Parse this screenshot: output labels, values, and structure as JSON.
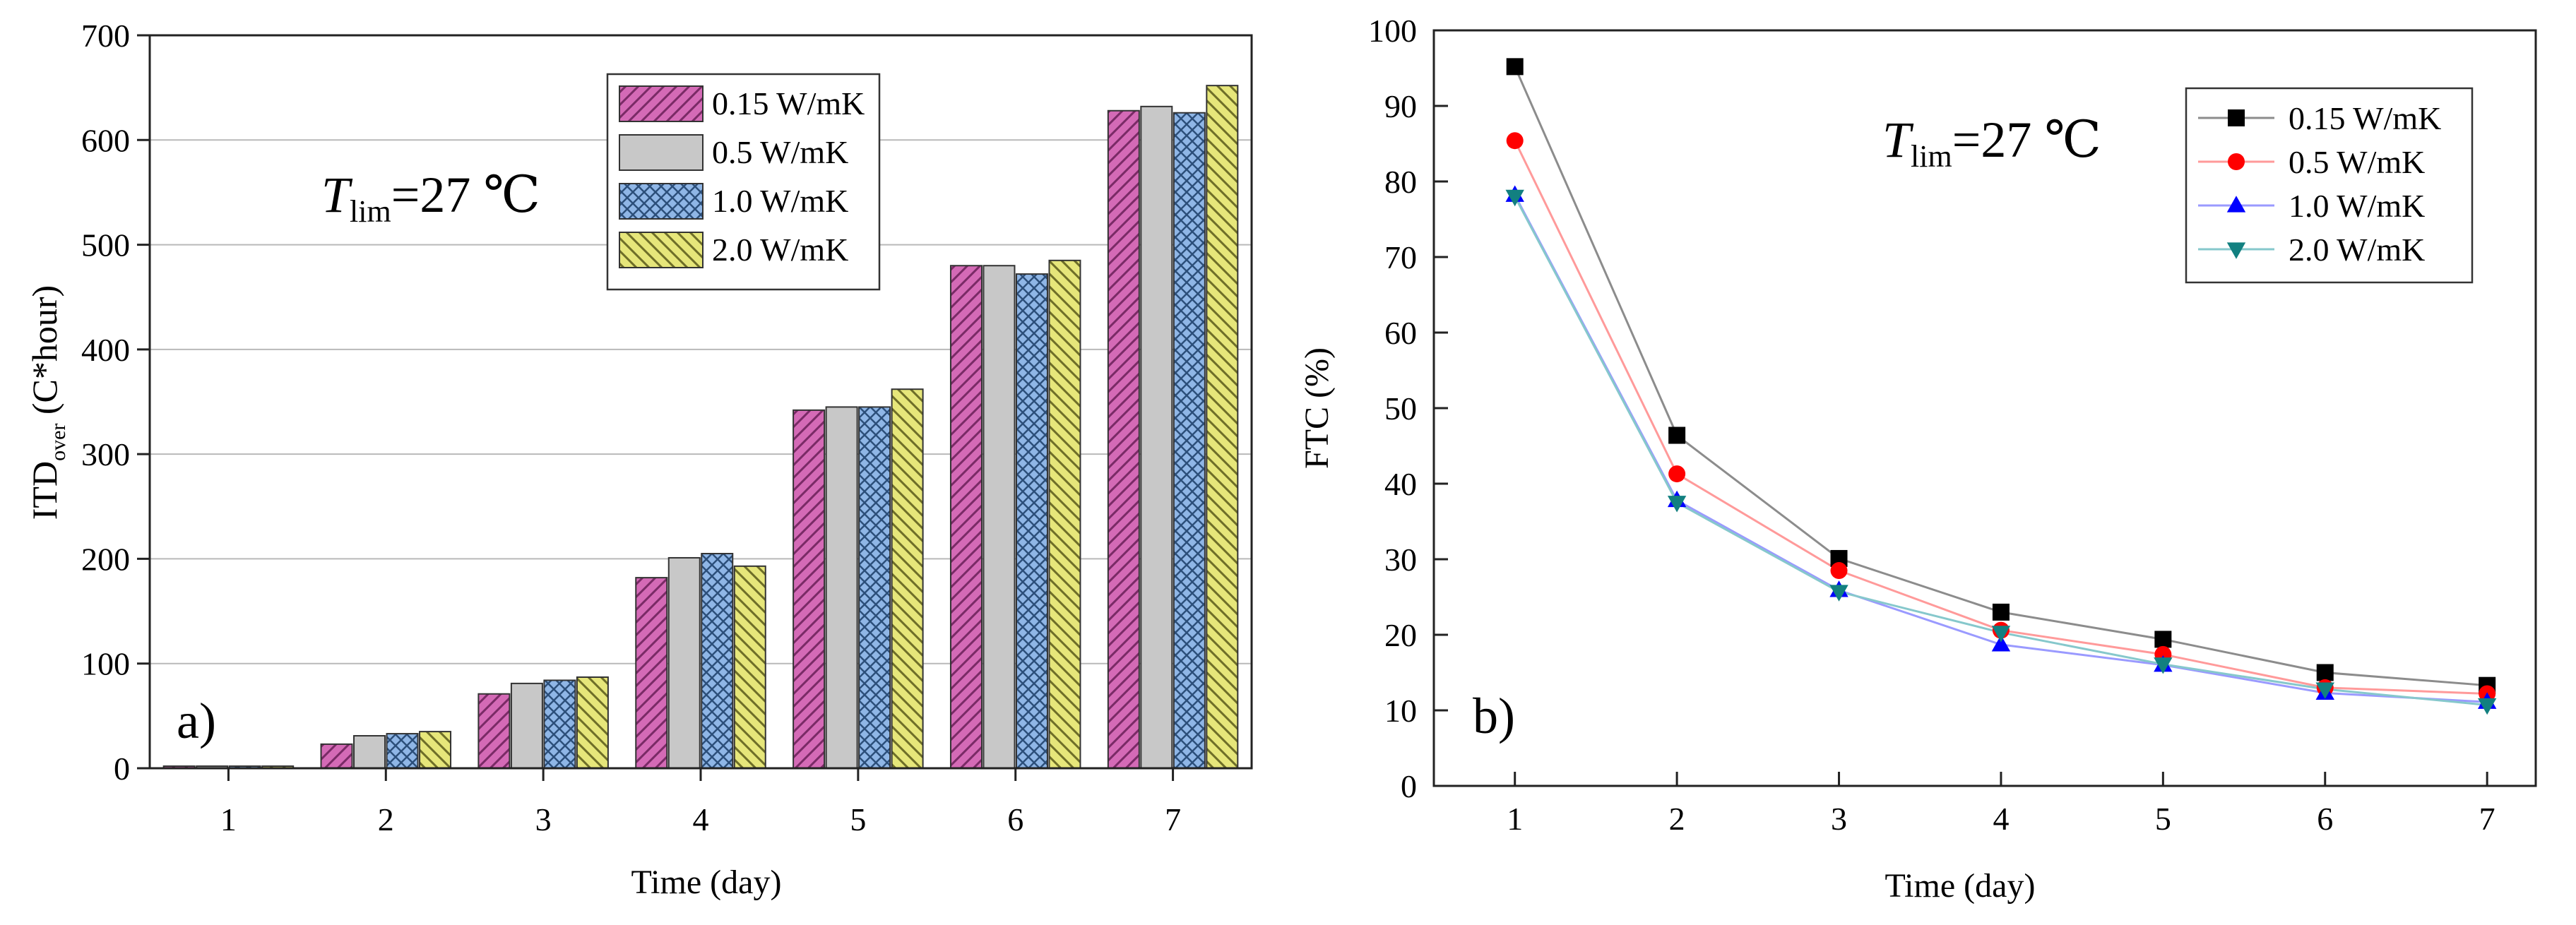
{
  "chart_data": [
    {
      "type": "bar",
      "panel_label": "a)",
      "annotation": {
        "main": "T",
        "sub": "lim",
        "rest": "=27 ℃"
      },
      "xlabel": "Time (day)",
      "ylabel": {
        "main": "ITD",
        "sub": "over",
        "rest": " (C*hour)"
      },
      "categories": [
        "1",
        "2",
        "3",
        "4",
        "5",
        "6",
        "7"
      ],
      "ylim": [
        0,
        700
      ],
      "yticks": [
        "0",
        "100",
        "200",
        "300",
        "400",
        "500",
        "600",
        "700"
      ],
      "legend_position": "top-right",
      "grid": "horizontal",
      "series": [
        {
          "name": "0.15 W/mK",
          "values": [
            2,
            23,
            71,
            182,
            342,
            480,
            628
          ],
          "color": "#d46ab6",
          "pattern": "diag-up"
        },
        {
          "name": "0.5 W/mK",
          "values": [
            2,
            31,
            81,
            201,
            345,
            480,
            632
          ],
          "color": "#c8c8c8",
          "pattern": "none"
        },
        {
          "name": "1.0 W/mK",
          "values": [
            2,
            33,
            84,
            205,
            345,
            472,
            626
          ],
          "color": "#8fb6e6",
          "pattern": "cross"
        },
        {
          "name": "2.0 W/mK",
          "values": [
            2,
            35,
            87,
            193,
            362,
            485,
            652
          ],
          "color": "#e6e67a",
          "pattern": "diag-down"
        }
      ]
    },
    {
      "type": "line",
      "panel_label": "b)",
      "annotation": {
        "main": "T",
        "sub": "lim",
        "rest": "=27 ℃"
      },
      "xlabel": "Time (day)",
      "ylabel": "FTC (%)",
      "x": [
        1,
        2,
        3,
        4,
        5,
        6,
        7
      ],
      "xticks": [
        "1",
        "2",
        "3",
        "4",
        "5",
        "6",
        "7"
      ],
      "xlim": [
        0.5,
        7.3
      ],
      "ylim": [
        0,
        100
      ],
      "yticks": [
        "0",
        "10",
        "20",
        "30",
        "40",
        "50",
        "60",
        "70",
        "80",
        "90",
        "100"
      ],
      "legend_position": "top-right",
      "series": [
        {
          "name": "0.15 W/mK",
          "values": [
            95.2,
            46.4,
            30.1,
            23.0,
            19.4,
            15.0,
            13.3
          ],
          "color": "#000000",
          "line_color": "#8c8c8c",
          "marker": "square"
        },
        {
          "name": "0.5 W/mK",
          "values": [
            85.4,
            41.3,
            28.5,
            20.6,
            17.4,
            13.0,
            12.2
          ],
          "color": "#ff0000",
          "line_color": "#ff9a9a",
          "marker": "circle"
        },
        {
          "name": "1.0 W/mK",
          "values": [
            78.2,
            37.8,
            25.9,
            18.7,
            16.0,
            12.3,
            11.1
          ],
          "color": "#0000ff",
          "line_color": "#9a9aff",
          "marker": "triangle-up"
        },
        {
          "name": "2.0 W/mK",
          "values": [
            78.0,
            37.5,
            25.7,
            20.3,
            16.1,
            12.8,
            10.7
          ],
          "color": "#128080",
          "line_color": "#86c8cc",
          "marker": "triangle-down"
        }
      ]
    }
  ]
}
